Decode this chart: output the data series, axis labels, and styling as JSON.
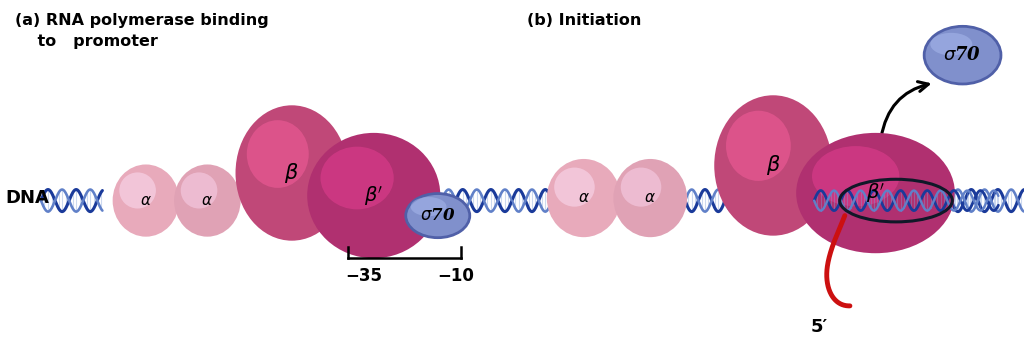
{
  "panel_a_title": "(a) RNA polymerase binding\n    to   promoter",
  "panel_b_title": "(b) Initiation",
  "dna_label": "DNA",
  "minus35": "−35",
  "minus10": "−10",
  "five_prime": "5′",
  "bg_color": "#ffffff",
  "alpha_color": "#e8aec0",
  "beta_color": "#c04878",
  "beta_prime_color": "#b83575",
  "sigma_fill": "#8090cc",
  "sigma_edge": "#5060a8",
  "dna_dark": "#1a3a9a",
  "dna_light": "#6080c8",
  "dna_connect": "#80a0d8",
  "red_rna": "#cc1010",
  "black": "#000000"
}
